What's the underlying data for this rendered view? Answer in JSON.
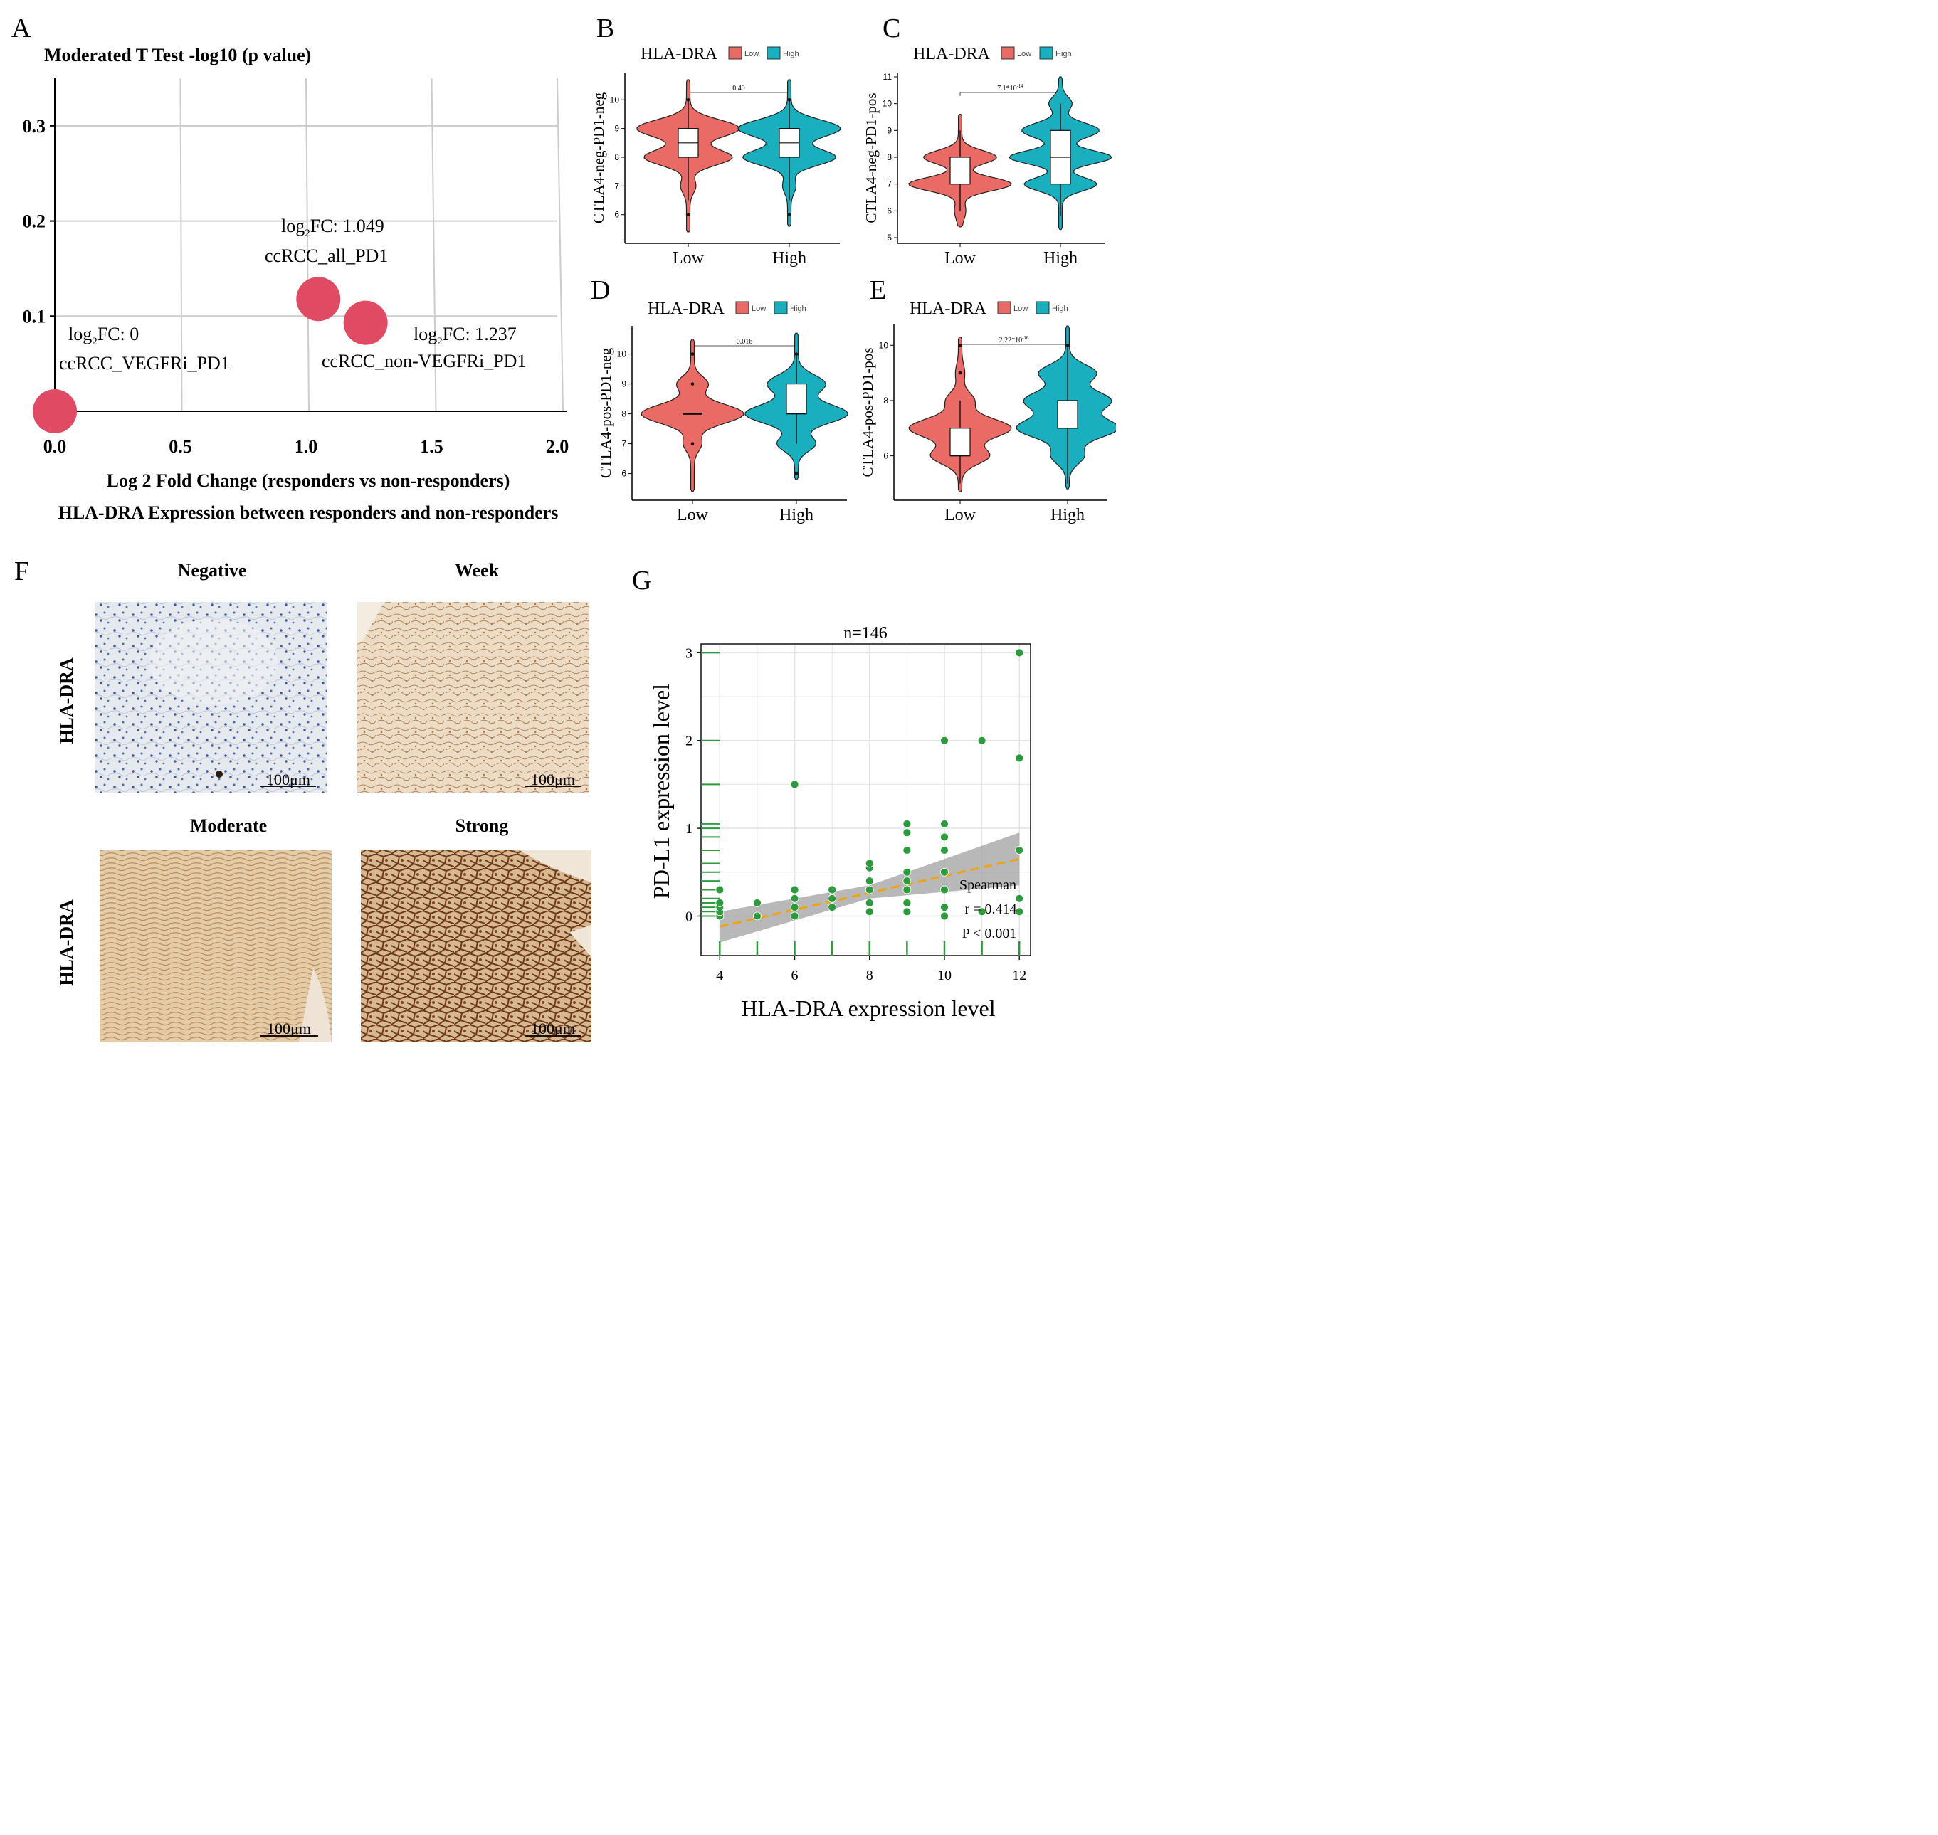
{
  "colors": {
    "low": "#ea6b66",
    "high": "#1aafbf",
    "bubble": "#e04a62",
    "scatter": "#2e9a3e",
    "trend": "#f0a30a",
    "band": "#9a9a9a",
    "grid": "#cccccc"
  },
  "panel_A": {
    "letter": "A"
  },
  "panel_B": {
    "letter": "B",
    "legend_title": "HLA-DRA",
    "legend_low": "Low",
    "legend_high": "High"
  },
  "panel_C": {
    "letter": "C",
    "legend_title": "HLA-DRA",
    "legend_low": "Low",
    "legend_high": "High"
  },
  "panel_D": {
    "letter": "D",
    "legend_title": "HLA-DRA",
    "legend_low": "Low",
    "legend_high": "High"
  },
  "panel_E": {
    "letter": "E",
    "legend_title": "HLA-DRA",
    "legend_low": "Low",
    "legend_high": "High"
  },
  "panel_F": {
    "letter": "F",
    "row_label_top": "HLA-DRA",
    "row_label_bottom": "HLA-DRA",
    "images": [
      {
        "title": "Negative",
        "scale_bar": "100μm",
        "tone": "#dde2ea",
        "cell": "#3a5aa8"
      },
      {
        "title": "Week",
        "scale_bar": "100μm",
        "tone": "#e9d7c0",
        "cell": "#b07b4f"
      },
      {
        "title": "Moderate",
        "scale_bar": "100μm",
        "tone": "#e2c8a4",
        "cell": "#b78a56"
      },
      {
        "title": "Strong",
        "scale_bar": "100μm",
        "tone": "#cfa97c",
        "cell": "#7a4520"
      }
    ]
  },
  "panel_G": {
    "letter": "G"
  },
  "chart_data": [
    {
      "id": "A",
      "type": "scatter",
      "title": "Moderated T Test -log10 (p value)",
      "xlabel": "Log 2 Fold Change (responders vs non-responders)",
      "caption": "HLA-DRA Expression between responders and non-responders",
      "xlim": [
        0,
        2
      ],
      "ylim": [
        0,
        0.35
      ],
      "xticks": [
        0,
        0.5,
        1,
        1.5,
        2
      ],
      "xtick_labels": [
        "0.0",
        "0.5",
        "1.0",
        "1.5",
        "2.0"
      ],
      "yticks": [
        0.1,
        0.2,
        0.3
      ],
      "ytick_labels": [
        "0.1",
        "0.2",
        "0.3"
      ],
      "grid": true,
      "points": [
        {
          "x": 0,
          "y": 0,
          "fc_label": "log2FC: 0",
          "name": "ccRCC_VEGFRi_PD1"
        },
        {
          "x": 1.049,
          "y": 0.118,
          "fc_label": "log2FC: 1.049",
          "name": "ccRCC_all_PD1"
        },
        {
          "x": 1.237,
          "y": 0.093,
          "fc_label": "log2FC: 1.237",
          "name": "ccRCC_non-VEGFRi_PD1"
        }
      ]
    },
    {
      "id": "B",
      "type": "violin",
      "ylabel": "CTLA4-neg-PD1-neg",
      "categories": [
        "Low",
        "High"
      ],
      "ylim": [
        5.2,
        10.8
      ],
      "yticks": [
        6,
        7,
        8,
        9,
        10
      ],
      "ytick_labels": [
        "6",
        "7",
        "8",
        "9",
        "10"
      ],
      "pvalue": "0.49",
      "groups": [
        {
          "name": "Low",
          "min": 5.4,
          "max": 10.7,
          "modes": [
            [
              9,
              1.0,
              0.3
            ],
            [
              8,
              0.85,
              0.28
            ],
            [
              7,
              0.12,
              0.25
            ]
          ],
          "q1": 8,
          "median": 8.5,
          "q3": 9,
          "whisker_low": 6.5,
          "whisker_high": 10,
          "outliers": [
            6,
            10
          ]
        },
        {
          "name": "High",
          "min": 5.6,
          "max": 10.7,
          "modes": [
            [
              9,
              1.0,
              0.3
            ],
            [
              8,
              0.9,
              0.28
            ],
            [
              7,
              0.1,
              0.25
            ]
          ],
          "q1": 8,
          "median": 8.5,
          "q3": 9,
          "whisker_low": 6.5,
          "whisker_high": 10,
          "outliers": [
            6,
            10
          ]
        }
      ]
    },
    {
      "id": "C",
      "type": "violin",
      "ylabel": "CTLA4-neg-PD1-pos",
      "categories": [
        "Low",
        "High"
      ],
      "ylim": [
        5,
        11
      ],
      "yticks": [
        5,
        6,
        7,
        8,
        9,
        10,
        11
      ],
      "ytick_labels": [
        "5",
        "6",
        "7",
        "8",
        "9",
        "10",
        "11"
      ],
      "pvalue": "7.1*10",
      "pvalue_exp": "-14",
      "groups": [
        {
          "name": "Low",
          "min": 5.4,
          "max": 9.6,
          "modes": [
            [
              7,
              1.0,
              0.25
            ],
            [
              8,
              0.7,
              0.25
            ],
            [
              6,
              0.08,
              0.3
            ]
          ],
          "q1": 7,
          "median": 7,
          "q3": 8,
          "whisker_low": 6,
          "whisker_high": 9,
          "outliers": []
        },
        {
          "name": "High",
          "min": 5.3,
          "max": 11,
          "modes": [
            [
              8,
              1.0,
              0.25
            ],
            [
              9,
              0.75,
              0.28
            ],
            [
              7,
              0.7,
              0.25
            ],
            [
              10,
              0.2,
              0.25
            ]
          ],
          "q1": 7,
          "median": 8,
          "q3": 9,
          "whisker_low": 5.8,
          "whisker_high": 10,
          "outliers": []
        }
      ]
    },
    {
      "id": "D",
      "type": "violin",
      "ylabel": "CTLA4-pos-PD1-neg",
      "categories": [
        "Low",
        "High"
      ],
      "ylim": [
        5.3,
        10.8
      ],
      "yticks": [
        6,
        7,
        8,
        9,
        10
      ],
      "ytick_labels": [
        "6",
        "7",
        "8",
        "9",
        "10"
      ],
      "pvalue": "0.016",
      "groups": [
        {
          "name": "Low",
          "min": 5.4,
          "max": 10.5,
          "modes": [
            [
              8,
              1.0,
              0.32
            ],
            [
              9,
              0.28,
              0.25
            ],
            [
              7,
              0.15,
              0.25
            ]
          ],
          "q1": 8,
          "median": 8,
          "q3": 8,
          "whisker_low": 8,
          "whisker_high": 8,
          "outliers": [
            7,
            9,
            10
          ]
        },
        {
          "name": "High",
          "min": 5.8,
          "max": 10.7,
          "modes": [
            [
              8,
              1.0,
              0.32
            ],
            [
              9,
              0.55,
              0.3
            ],
            [
              7,
              0.35,
              0.25
            ]
          ],
          "q1": 8,
          "median": 8,
          "q3": 9,
          "whisker_low": 7,
          "whisker_high": 10,
          "outliers": [
            6,
            10
          ]
        }
      ]
    },
    {
      "id": "E",
      "type": "violin",
      "ylabel": "CTLA4-pos-PD1-pos",
      "categories": [
        "Low",
        "High"
      ],
      "ylim": [
        4.6,
        10.6
      ],
      "yticks": [
        6,
        8,
        10
      ],
      "ytick_labels": [
        "6",
        "8",
        "10"
      ],
      "pvalue": "2.22*10",
      "pvalue_exp": "-16",
      "groups": [
        {
          "name": "Low",
          "min": 4.7,
          "max": 10.3,
          "modes": [
            [
              7,
              1.0,
              0.35
            ],
            [
              6,
              0.55,
              0.3
            ],
            [
              8,
              0.25,
              0.3
            ],
            [
              9,
              0.06,
              0.3
            ]
          ],
          "q1": 6,
          "median": 6,
          "q3": 7,
          "whisker_low": 5,
          "whisker_high": 8,
          "outliers": [
            9,
            10
          ]
        },
        {
          "name": "High",
          "min": 4.8,
          "max": 10.7,
          "modes": [
            [
              7,
              1.0,
              0.35
            ],
            [
              8,
              0.85,
              0.35
            ],
            [
              9,
              0.55,
              0.3
            ],
            [
              6,
              0.3,
              0.3
            ]
          ],
          "q1": 7,
          "median": 7,
          "q3": 8,
          "whisker_low": 5,
          "whisker_high": 10,
          "outliers": [
            10
          ]
        }
      ]
    },
    {
      "id": "G",
      "type": "scatter",
      "title": "n=146",
      "xlabel": "HLA-DRA expression level",
      "ylabel": "PD-L1 expression level",
      "xlim": [
        3.5,
        12.3
      ],
      "ylim": [
        -0.45,
        3.1
      ],
      "xticks": [
        4,
        6,
        8,
        10,
        12
      ],
      "xtick_labels": [
        "4",
        "6",
        "8",
        "10",
        "12"
      ],
      "yticks": [
        0,
        1,
        2,
        3
      ],
      "ytick_labels": [
        "0",
        "1",
        "2",
        "3"
      ],
      "stats": [
        "Spearman",
        "r = 0.414",
        "P < 0.001"
      ],
      "trend": {
        "x0": 4,
        "y0": -0.12,
        "x1": 12,
        "y1": 0.65
      },
      "rug_y": [
        0,
        0.05,
        0.1,
        0.15,
        0.2,
        0.3,
        0.4,
        0.5,
        0.6,
        0.75,
        0.9,
        1.0,
        1.05,
        1.5,
        2,
        3
      ],
      "rug_x": [
        4,
        5,
        6,
        7,
        8,
        9,
        10,
        11,
        12
      ],
      "points": [
        [
          4,
          0
        ],
        [
          4,
          0.05
        ],
        [
          4,
          0.1
        ],
        [
          4,
          0.15
        ],
        [
          4,
          0.3
        ],
        [
          5,
          0
        ],
        [
          5,
          0.15
        ],
        [
          6,
          0
        ],
        [
          6,
          0.1
        ],
        [
          6,
          0.2
        ],
        [
          6,
          0.3
        ],
        [
          6,
          1.5
        ],
        [
          7,
          0.1
        ],
        [
          7,
          0.2
        ],
        [
          7,
          0.3
        ],
        [
          8,
          0.05
        ],
        [
          8,
          0.15
        ],
        [
          8,
          0.3
        ],
        [
          8,
          0.4
        ],
        [
          8,
          0.55
        ],
        [
          8,
          0.6
        ],
        [
          9,
          0.05
        ],
        [
          9,
          0.15
        ],
        [
          9,
          0.3
        ],
        [
          9,
          0.4
        ],
        [
          9,
          0.5
        ],
        [
          9,
          0.75
        ],
        [
          9,
          0.95
        ],
        [
          9,
          1.05
        ],
        [
          10,
          0
        ],
        [
          10,
          0.1
        ],
        [
          10,
          0.3
        ],
        [
          10,
          0.5
        ],
        [
          10,
          0.75
        ],
        [
          10,
          0.9
        ],
        [
          10,
          1.05
        ],
        [
          10,
          2
        ],
        [
          11,
          0.05
        ],
        [
          11,
          2
        ],
        [
          12,
          0.05
        ],
        [
          12,
          0.2
        ],
        [
          12,
          0.75
        ],
        [
          12,
          1.8
        ],
        [
          12,
          3
        ]
      ]
    }
  ]
}
